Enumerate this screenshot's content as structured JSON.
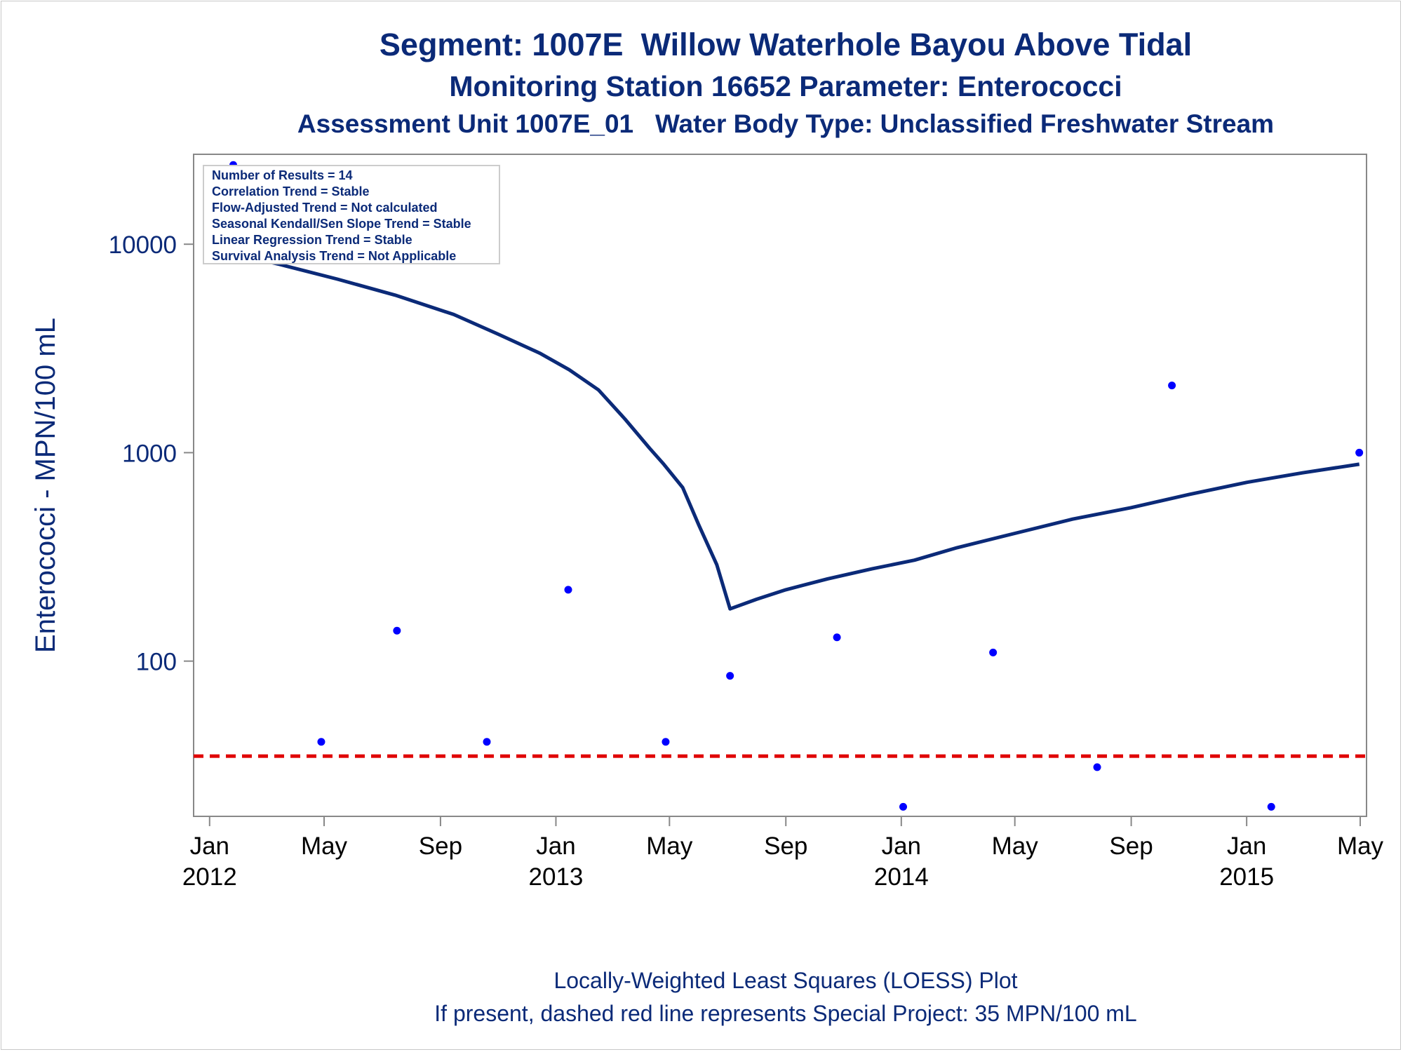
{
  "title": {
    "line1": "Segment: 1007E  Willow Waterhole Bayou Above Tidal",
    "line2": "Monitoring Station 16652 Parameter: Enterococci",
    "line3": "Assessment Unit 1007E_01   Water Body Type: Unclassified Freshwater Stream"
  },
  "footnote": {
    "line1": "Locally-Weighted Least Squares (LOESS) Plot",
    "line2": "If present, dashed red line represents Special Project: 35 MPN/100 mL"
  },
  "stats_box": [
    "Number of Results = 14",
    "Correlation Trend = Stable",
    "Flow-Adjusted Trend = Not calculated",
    "Seasonal Kendall/Sen Slope Trend = Stable",
    "Linear Regression Trend = Stable",
    "Survival Analysis Trend = Not Applicable"
  ],
  "chart_data": {
    "type": "scatter",
    "ylabel": "Enterococci - MPN/100 mL",
    "xlabel": "",
    "y_scale": "log",
    "ylim": [
      18,
      27000
    ],
    "xlim": [
      "2011-12-24",
      "2015-05-01"
    ],
    "y_ticks": [
      100,
      1000,
      10000
    ],
    "x_ticks": [
      {
        "date": "2012-01-01",
        "label": "Jan",
        "year": "2012"
      },
      {
        "date": "2012-05-01",
        "label": "May",
        "year": ""
      },
      {
        "date": "2012-09-01",
        "label": "Sep",
        "year": ""
      },
      {
        "date": "2013-01-01",
        "label": "Jan",
        "year": "2013"
      },
      {
        "date": "2013-05-01",
        "label": "May",
        "year": ""
      },
      {
        "date": "2013-09-01",
        "label": "Sep",
        "year": ""
      },
      {
        "date": "2014-01-01",
        "label": "Jan",
        "year": "2014"
      },
      {
        "date": "2014-05-01",
        "label": "May",
        "year": ""
      },
      {
        "date": "2014-09-01",
        "label": "Sep",
        "year": ""
      },
      {
        "date": "2015-01-01",
        "label": "Jan",
        "year": "2015"
      },
      {
        "date": "2015-05-01",
        "label": "May",
        "year": ""
      }
    ],
    "points": [
      {
        "x": "2012-01-26",
        "y": 24000
      },
      {
        "x": "2012-04-28",
        "y": 41
      },
      {
        "x": "2012-07-17",
        "y": 140
      },
      {
        "x": "2012-10-20",
        "y": 41
      },
      {
        "x": "2013-01-14",
        "y": 220
      },
      {
        "x": "2013-04-27",
        "y": 41
      },
      {
        "x": "2013-07-04",
        "y": 85
      },
      {
        "x": "2013-10-25",
        "y": 130
      },
      {
        "x": "2014-01-03",
        "y": 20
      },
      {
        "x": "2014-04-08",
        "y": 110
      },
      {
        "x": "2014-07-27",
        "y": 31
      },
      {
        "x": "2014-10-14",
        "y": 2100
      },
      {
        "x": "2015-01-27",
        "y": 20
      },
      {
        "x": "2015-04-30",
        "y": 1000
      }
    ],
    "loess_line": [
      {
        "x": "2012-01-26",
        "y": 9000
      },
      {
        "x": "2012-03-15",
        "y": 8000
      },
      {
        "x": "2012-05-15",
        "y": 6800
      },
      {
        "x": "2012-07-15",
        "y": 5700
      },
      {
        "x": "2012-09-15",
        "y": 4600
      },
      {
        "x": "2012-11-01",
        "y": 3700
      },
      {
        "x": "2012-12-15",
        "y": 3000
      },
      {
        "x": "2013-01-15",
        "y": 2500
      },
      {
        "x": "2013-02-15",
        "y": 2000
      },
      {
        "x": "2013-03-15",
        "y": 1450
      },
      {
        "x": "2013-04-10",
        "y": 1050
      },
      {
        "x": "2013-04-25",
        "y": 880
      },
      {
        "x": "2013-05-15",
        "y": 680
      },
      {
        "x": "2013-06-01",
        "y": 450
      },
      {
        "x": "2013-06-20",
        "y": 290
      },
      {
        "x": "2013-07-04",
        "y": 178
      },
      {
        "x": "2013-08-01",
        "y": 198
      },
      {
        "x": "2013-09-01",
        "y": 220
      },
      {
        "x": "2013-10-15",
        "y": 248
      },
      {
        "x": "2013-12-01",
        "y": 277
      },
      {
        "x": "2014-01-15",
        "y": 305
      },
      {
        "x": "2014-03-01",
        "y": 350
      },
      {
        "x": "2014-05-01",
        "y": 410
      },
      {
        "x": "2014-07-01",
        "y": 480
      },
      {
        "x": "2014-09-01",
        "y": 545
      },
      {
        "x": "2014-11-01",
        "y": 630
      },
      {
        "x": "2015-01-01",
        "y": 720
      },
      {
        "x": "2015-03-01",
        "y": 800
      },
      {
        "x": "2015-04-30",
        "y": 880
      }
    ],
    "reference_line": {
      "y": 35,
      "label": "Special Project: 35 MPN/100 mL",
      "color": "#e00000"
    },
    "colors": {
      "points": "#0000ff",
      "line": "#0b2a78",
      "axis_text": "#0b2a78",
      "tick_text": "#000000",
      "axis_frame": "#888888"
    }
  }
}
